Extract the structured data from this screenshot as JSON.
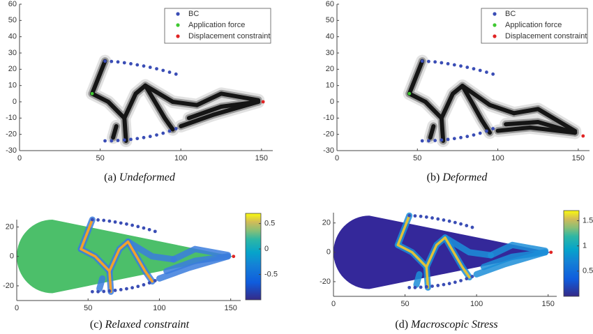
{
  "chart_data": [
    {
      "type": "scatter",
      "caption_label": "(a)",
      "caption": "Undeformed",
      "legend": "northeast",
      "xlim": [
        0,
        157
      ],
      "ylim": [
        -30,
        60
      ],
      "xticks": [
        0,
        50,
        100,
        150
      ],
      "yticks": [
        -30,
        -20,
        -10,
        0,
        10,
        20,
        30,
        40,
        50,
        60
      ],
      "series": [
        {
          "name": "BC",
          "color": "#3a4db5",
          "x": [
            53,
            57,
            61,
            65,
            69,
            73,
            77,
            81,
            85,
            89,
            93,
            97,
            53,
            57,
            61,
            65,
            69,
            73,
            77,
            81,
            85,
            89,
            93,
            97
          ],
          "values": [
            25,
            24.8,
            24.5,
            24,
            23.4,
            22.7,
            22,
            21.2,
            20.3,
            19.3,
            18.2,
            17,
            -24,
            -24,
            -23.8,
            -23.5,
            -23.1,
            -22.6,
            -22,
            -21.3,
            -20.4,
            -19.3,
            -18,
            -16.5
          ]
        },
        {
          "name": "Application force",
          "color": "#3fc832",
          "x": [
            45
          ],
          "values": [
            5
          ]
        },
        {
          "name": "Displacement constraint",
          "color": "#e02424",
          "x": [
            151
          ],
          "values": [
            0
          ]
        }
      ]
    },
    {
      "type": "scatter",
      "caption_label": "(b)",
      "caption": "Deformed",
      "legend": "northeast",
      "xlim": [
        0,
        157
      ],
      "ylim": [
        -30,
        60
      ],
      "xticks": [
        0,
        50,
        100,
        150
      ],
      "yticks": [
        -30,
        -20,
        -10,
        0,
        10,
        20,
        30,
        40,
        50,
        60
      ],
      "series": [
        {
          "name": "BC",
          "color": "#3a4db5",
          "x": [
            53,
            57,
            61,
            65,
            69,
            73,
            77,
            81,
            85,
            89,
            93,
            97,
            53,
            57,
            61,
            65,
            69,
            73,
            77,
            81,
            85,
            89,
            93,
            97
          ],
          "values": [
            25,
            24.8,
            24.5,
            24,
            23.4,
            22.7,
            22,
            21.2,
            20.3,
            19.3,
            18.2,
            17,
            -24,
            -24,
            -23.8,
            -23.5,
            -23.1,
            -22.6,
            -22,
            -21.3,
            -20.4,
            -19.3,
            -18,
            -16.5
          ]
        },
        {
          "name": "Application force",
          "color": "#3fc832",
          "x": [
            45
          ],
          "values": [
            5
          ]
        },
        {
          "name": "Displacement constraint",
          "color": "#e02424",
          "x": [
            153
          ],
          "values": [
            -21
          ]
        }
      ]
    },
    {
      "type": "field",
      "caption_label": "(c)",
      "caption": "Relaxed constraint",
      "field_color": "#4cbf6a",
      "xlim": [
        0,
        157
      ],
      "ylim": [
        -30,
        25
      ],
      "xticks": [
        0,
        50,
        100,
        150
      ],
      "yticks": [
        -20,
        0,
        20
      ],
      "colorbar": {
        "clim": [
          -1,
          0.7
        ],
        "ticks": [
          -0.5,
          0,
          0.5
        ]
      },
      "series": [
        {
          "color": "#3a4db5",
          "x": [
            53,
            57,
            61,
            65,
            69,
            73,
            77,
            81,
            85,
            89,
            93,
            97,
            53,
            57,
            61,
            65,
            69,
            73,
            77,
            81,
            85,
            89,
            93,
            97
          ],
          "values": [
            25,
            24.8,
            24.5,
            24,
            23.4,
            22.7,
            22,
            21.2,
            20.3,
            19.3,
            18.2,
            17,
            -24,
            -24,
            -23.8,
            -23.5,
            -23.1,
            -22.6,
            -22,
            -21.3,
            -20.4,
            -19.3,
            -18,
            -16.5
          ]
        },
        {
          "color": "#e02424",
          "x": [
            152
          ],
          "values": [
            0
          ]
        }
      ]
    },
    {
      "type": "field",
      "caption_label": "(d)",
      "caption": "Macroscopic Stress",
      "field_color": "#34289a",
      "xlim": [
        0,
        156
      ],
      "ylim": [
        -30,
        27
      ],
      "xticks": [
        0,
        50,
        100,
        150
      ],
      "yticks": [
        -20,
        0,
        20
      ],
      "colorbar": {
        "clim": [
          0,
          1.7
        ],
        "ticks": [
          0.5,
          1,
          1.5
        ]
      },
      "series": [
        {
          "color": "#3a4db5",
          "x": [
            53,
            57,
            61,
            65,
            69,
            73,
            77,
            81,
            85,
            89,
            93,
            97,
            53,
            57,
            61,
            65,
            69,
            73,
            77,
            81,
            85,
            89,
            93,
            97
          ],
          "values": [
            25,
            24.8,
            24.5,
            24,
            23.4,
            22.7,
            22,
            21.2,
            20.3,
            19.3,
            18.2,
            17,
            -24,
            -24,
            -23.8,
            -23.5,
            -23.1,
            -22.6,
            -22,
            -21.3,
            -20.4,
            -19.3,
            -18,
            -16.5
          ]
        },
        {
          "color": "#e02424",
          "x": [
            152
          ],
          "values": [
            0
          ]
        }
      ]
    }
  ]
}
